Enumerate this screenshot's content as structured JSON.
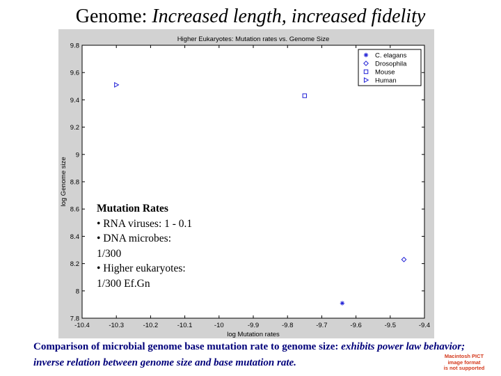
{
  "slide": {
    "title_lead": "Genome: ",
    "title_italic": "Increased length, increased fidelity"
  },
  "overlay": {
    "heading": "Mutation Rates",
    "lines": [
      "• RNA viruses:  1 - 0.1",
      "• DNA microbes:",
      "1/300",
      "• Higher eukaryotes:",
      "1/300 Ef.Gn"
    ]
  },
  "caption": {
    "plain": "Comparison of microbial genome base mutation rate to genome size: ",
    "italic": " exhibits power law behavior; inverse relation between genome size and base mutation rate."
  },
  "pict_badge": {
    "lines": [
      "Macintosh PICT",
      "image format",
      "is not supported"
    ]
  },
  "chart_data": {
    "type": "scatter",
    "title": "Higher Eukaryotes: Mutation rates vs. Genome Size",
    "xlabel": "log Mutation rates",
    "ylabel": "log Genome size",
    "xlim": [
      -10.4,
      -9.4
    ],
    "ylim": [
      7.8,
      9.8
    ],
    "xticks": [
      "-10.4",
      "-10.3",
      "-10.2",
      "-10.1",
      "-10",
      "-9.9",
      "-9.8",
      "-9.7",
      "-9.6",
      "-9.5",
      "-9.4"
    ],
    "yticks": [
      "7.8",
      "8",
      "8.2",
      "8.4",
      "8.6",
      "8.8",
      "9",
      "9.2",
      "9.4",
      "9.6",
      "9.8"
    ],
    "grid": false,
    "legend_position": "top-right",
    "colors": {
      "marker": "#1f1fd6",
      "background": "#d2d2d2",
      "axes": "#000000"
    },
    "series": [
      {
        "name": "C. elagans",
        "marker": "asterisk",
        "x": -9.64,
        "y": 7.91
      },
      {
        "name": "Drosophila",
        "marker": "diamond",
        "x": -9.46,
        "y": 8.23
      },
      {
        "name": "Mouse",
        "marker": "square",
        "x": -9.75,
        "y": 9.43
      },
      {
        "name": "Human",
        "marker": "triangle-right",
        "x": -10.3,
        "y": 9.51
      }
    ]
  }
}
